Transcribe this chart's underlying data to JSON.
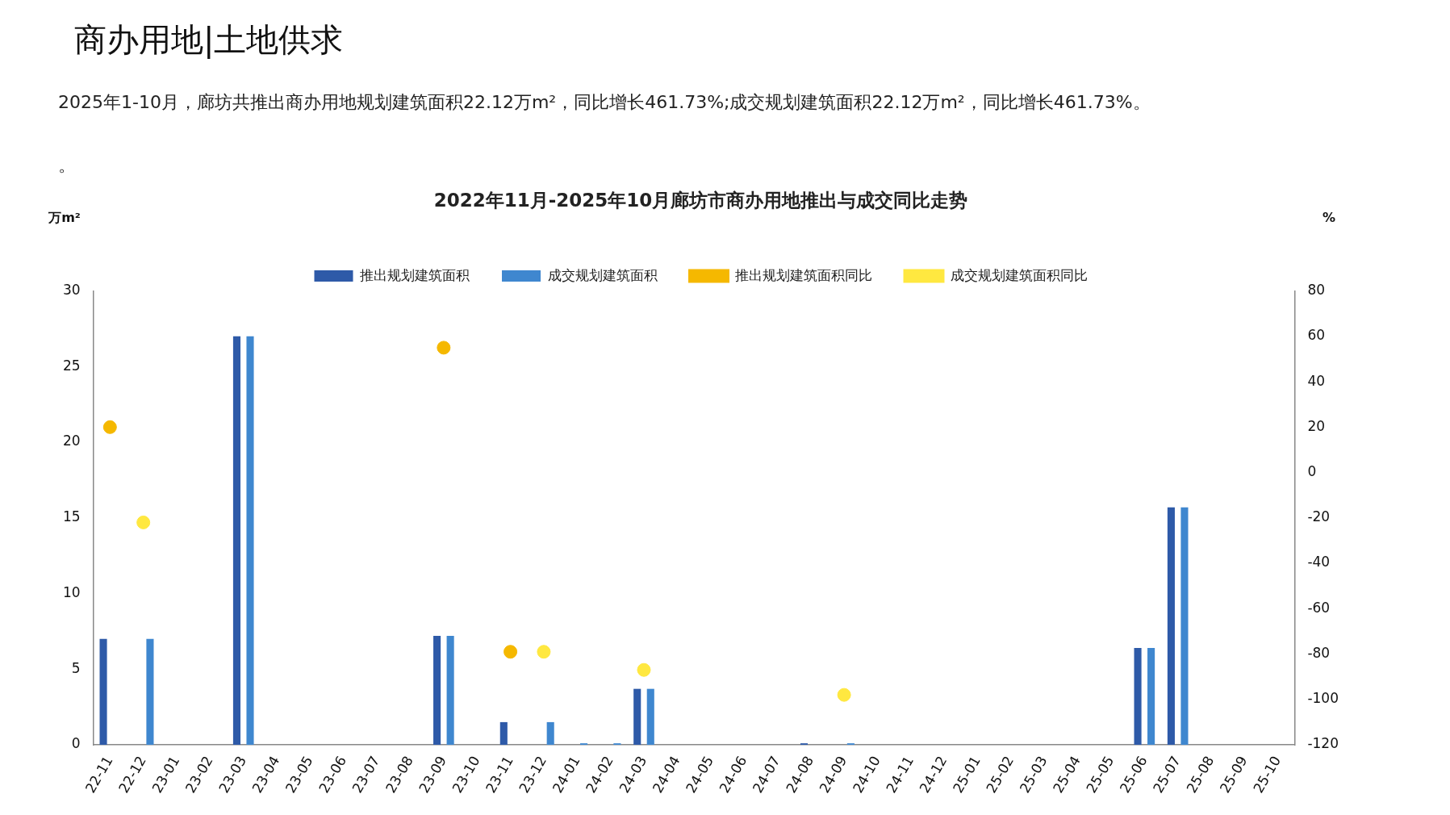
{
  "chart_data": {
    "type": "bar",
    "title": "2022年11月-2025年10月廊坊市商办用地推出与成交同比走势",
    "annotations": [
      "商办用地|土地供求",
      "2025年1-10月，廊坊共推出商办用地规划建筑面积22.12万m²，同比增长461.73%;成交规划建筑面积22.12万m²，同比增长461.73%。",
      "。"
    ],
    "ylabel": "万m²",
    "y2label": "%",
    "categories": [
      "22-11",
      "22-12",
      "23-01",
      "23-02",
      "23-03",
      "23-04",
      "23-05",
      "23-06",
      "23-07",
      "23-08",
      "23-09",
      "23-10",
      "23-11",
      "23-12",
      "24-01",
      "24-02",
      "24-03",
      "24-04",
      "24-05",
      "24-06",
      "24-07",
      "24-08",
      "24-09",
      "24-10",
      "24-11",
      "24-12",
      "25-01",
      "25-02",
      "25-03",
      "25-04",
      "25-05",
      "25-06",
      "25-07",
      "25-08",
      "25-09",
      "25-10"
    ],
    "series": [
      {
        "name": "推出规划建筑面积",
        "color": "#2e5aa8",
        "values": [
          7.0,
          0,
          0,
          0,
          27,
          0,
          0,
          0,
          0,
          0,
          7.2,
          0,
          1.5,
          0,
          0,
          0,
          3.7,
          0,
          0,
          0,
          0,
          0.1,
          0,
          0,
          0,
          0,
          0,
          0,
          0,
          0,
          0,
          6.4,
          15.7,
          0,
          0,
          0
        ]
      },
      {
        "name": "成交规划建筑面积",
        "color": "#3f87cf",
        "values": [
          0,
          7.0,
          0,
          0,
          27,
          0,
          0,
          0,
          0,
          0,
          7.2,
          0,
          0,
          1.5,
          0.1,
          0.1,
          3.7,
          0,
          0,
          0,
          0,
          0,
          0.1,
          0,
          0,
          0,
          0,
          0,
          0,
          0,
          0,
          6.4,
          15.7,
          0,
          0,
          0
        ]
      },
      {
        "name": "推出规划建筑面积同比",
        "type": "scatter",
        "axis": "y2",
        "color": "#f5b800",
        "values": [
          20,
          null,
          null,
          null,
          null,
          null,
          null,
          null,
          null,
          null,
          55,
          null,
          -79,
          null,
          null,
          null,
          null,
          null,
          null,
          null,
          null,
          null,
          null,
          null,
          null,
          null,
          null,
          null,
          null,
          null,
          null,
          null,
          null,
          null,
          null,
          null
        ]
      },
      {
        "name": "成交规划建筑面积同比",
        "type": "scatter",
        "axis": "y2",
        "color": "#ffe840",
        "values": [
          null,
          -22,
          null,
          null,
          null,
          null,
          null,
          null,
          null,
          null,
          null,
          null,
          null,
          -79,
          null,
          null,
          -87,
          null,
          null,
          null,
          null,
          null,
          -98,
          null,
          null,
          null,
          null,
          null,
          null,
          null,
          null,
          null,
          null,
          null,
          null,
          null
        ]
      }
    ],
    "ylim": [
      0,
      30
    ],
    "yticks": [
      0,
      5,
      10,
      15,
      20,
      25,
      30
    ],
    "y2lim": [
      -120,
      80
    ],
    "y2ticks": [
      -120,
      -100,
      -80,
      -60,
      -40,
      -20,
      0,
      20,
      40,
      60,
      80
    ],
    "grid": false,
    "legend": "top",
    "marker": "circle"
  }
}
